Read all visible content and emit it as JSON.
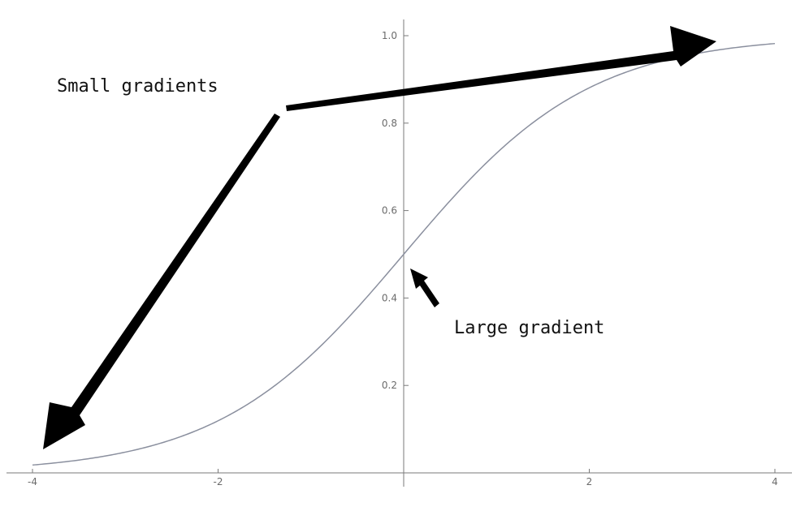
{
  "chart_data": {
    "type": "line",
    "title": "",
    "xlabel": "",
    "ylabel": "",
    "xlim": [
      -4,
      4
    ],
    "ylim": [
      0,
      1
    ],
    "x_ticks": [
      -4,
      -2,
      2,
      4
    ],
    "x_tick_labels": [
      "-4",
      "-2",
      "2",
      "4"
    ],
    "y_ticks": [
      0.2,
      0.4,
      0.6,
      0.8,
      1.0
    ],
    "y_tick_labels": [
      "0.2",
      "0.4",
      "0.6",
      "0.8",
      "1.0"
    ],
    "grid": false,
    "series": [
      {
        "function": "1 / (1 + exp(-x))",
        "x": [
          -4,
          -3.5,
          -3,
          -2.5,
          -2,
          -1.5,
          -1,
          -0.5,
          0,
          0.5,
          1,
          1.5,
          2,
          2.5,
          3,
          3.5,
          4
        ],
        "y": [
          0.018,
          0.029,
          0.047,
          0.076,
          0.119,
          0.182,
          0.269,
          0.378,
          0.5,
          0.622,
          0.731,
          0.818,
          0.881,
          0.924,
          0.953,
          0.971,
          0.982
        ],
        "color": "#8a8f9e"
      }
    ],
    "annotations": [
      {
        "text": "Small gradients"
      },
      {
        "text": "Large gradient"
      }
    ]
  }
}
